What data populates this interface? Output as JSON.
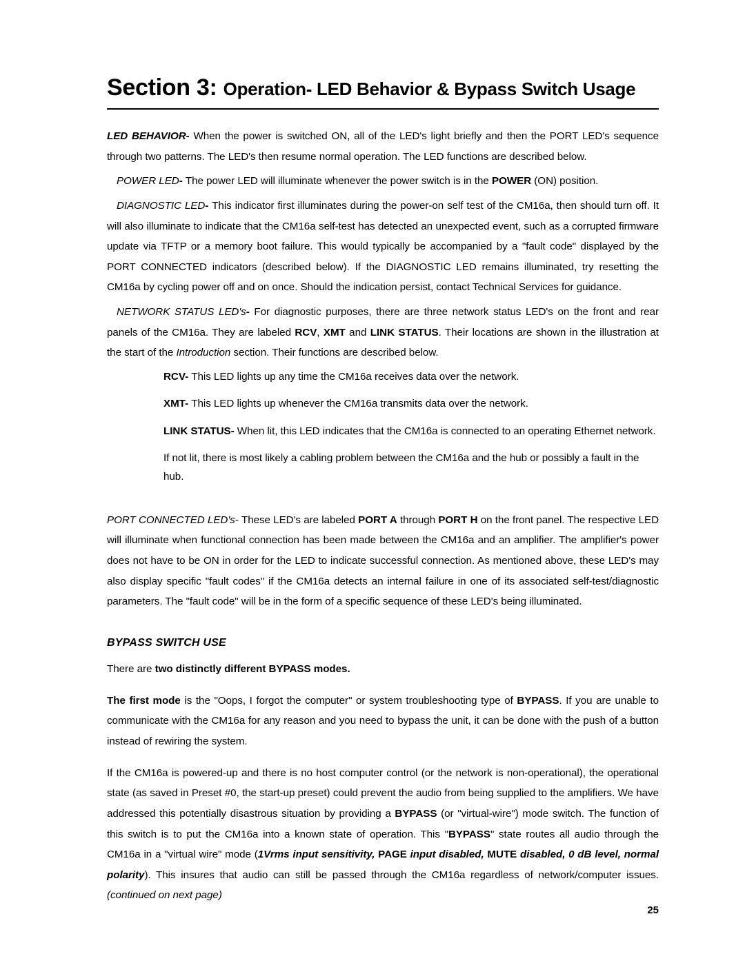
{
  "title": {
    "prefix": "Section 3: ",
    "main": "Operation- LED Behavior & Bypass Switch Usage"
  },
  "ledBehavior": {
    "label": "LED BEHAVIOR- ",
    "text": "When the power is switched ON, all of the LED's light briefly and then the PORT LED's sequence through two patterns. The LED's then resume  normal operation. The LED functions are described below."
  },
  "powerLed": {
    "label": "POWER LED",
    "dash": "- ",
    "text1": "The power LED will illuminate whenever the power switch is in the ",
    "bold1": "POWER",
    "text2": " (ON) position."
  },
  "diagnosticLed": {
    "label": "DIAGNOSTIC LED",
    "dash": "- ",
    "text": "This indicator first illuminates during the power-on self test of the CM16a, then should turn off. It will also illuminate to indicate that the CM16a self-test has detected an unexpected event, such as a corrupted firmware update via TFTP or a memory boot failure. This would typically be accompanied by a \"fault code\" displayed by the PORT CONNECTED indicators (described below). If the DIAGNOSTIC LED remains illuminated, try resetting the CM16a by cycling power off and on once. Should the indication persist, contact Technical Services for guidance."
  },
  "networkStatus": {
    "label": "NETWORK STATUS LED's",
    "dash": "- ",
    "text1": "For diagnostic purposes, there are three network status LED's on the front and rear panels of the CM16a. They are labeled ",
    "b1": "RCV",
    "c1": ", ",
    "b2": "XMT",
    "c2": " and ",
    "b3": "LINK STATUS",
    "text2": ". Their locations are shown in the illustration at the start of the ",
    "i1": "Introduction",
    "text3": " section. Their functions are described below."
  },
  "leds": {
    "rcv": {
      "label": "RCV- ",
      "text": "This LED lights up any time the CM16a receives data over the network."
    },
    "xmt": {
      "label": "XMT- ",
      "text": "This LED lights up whenever the CM16a transmits data over the network."
    },
    "link": {
      "label": "LINK STATUS- ",
      "text": "When lit, this LED indicates that the CM16a is connected to an operating Ethernet network."
    },
    "notlit": "If not lit, there is most likely a cabling problem between the CM16a and the hub or possibly a fault in the hub."
  },
  "portConnected": {
    "label": "PORT CONNECTED LED's- ",
    "text1": "These LED's are labeled ",
    "b1": "PORT A",
    "text2": " through ",
    "b2": "PORT H",
    "text3": " on the front panel. The respective LED will illuminate when functional connection has been made between the CM16a and an amplifier. The amplifier's power does not have to be ON in order for the LED to indicate successful connection. As mentioned above, these LED's may also display specific \"fault codes\" if the CM16a detects an internal failure in one of its associated self-test/diagnostic parameters. The \"fault code\" will be in the form of a specific sequence of these LED's being illuminated."
  },
  "bypass": {
    "heading": "BYPASS SWITCH USE",
    "para1a": "There are ",
    "para1b": "two distinctly different BYPASS modes.",
    "para2a": "The first mode",
    "para2b": " is the \"Oops, I forgot the computer\" or system troubleshooting type of ",
    "para2c": "BYPASS",
    "para2d": ". If you are unable to communicate with the CM16a for any reason and you need to bypass the unit, it can be done with the push of a button instead of rewiring the system.",
    "para3a": "If  the CM16a is powered-up and there is no host computer control (or the network is non-operational), the operational state (as saved in Preset #0, the start-up preset)  could prevent the audio from being supplied to the amplifiers. We have addressed this potentially disastrous situation by providing a ",
    "para3b": "BYPASS",
    "para3c": " (or \"virtual-wire\") mode switch.  The function of this switch is to put the CM16a into a known state of operation. This \"",
    "para3d": "BYPASS",
    "para3e": "\" state routes all audio through the CM16a in a \"virtual wire\" mode (",
    "para3f": "1Vrms input sensitivity, ",
    "para3g": "PAGE",
    "para3h": " input disabled, ",
    "para3i": "MUTE",
    "para3j": " disabled, 0 dB level, normal polarity",
    "para3k": "). This insures that audio can still be passed through the CM16a regardless of network/computer issues.  ",
    "cont": "(continued on next page)"
  },
  "pageNumber": "25"
}
